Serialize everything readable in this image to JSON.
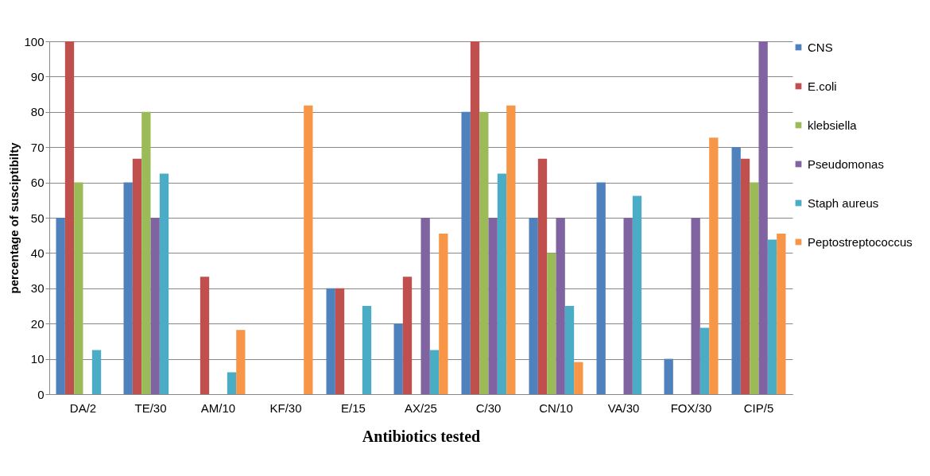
{
  "chart_data": {
    "type": "bar",
    "xlabel": "Antibiotics tested",
    "ylabel": "percentage of susciptibilty",
    "categories": [
      "DA/2",
      "TE/30",
      "AM/10",
      "KF/30",
      "E/15",
      "AX/25",
      "C/30",
      "CN/10",
      "VA/30",
      "FOX/30",
      "CIP/5"
    ],
    "series": [
      {
        "name": "CNS",
        "color": "#4f81bd",
        "values": [
          50,
          60,
          0,
          0,
          30,
          20,
          80,
          50,
          60,
          10,
          70
        ]
      },
      {
        "name": "E.coli",
        "color": "#c0504d",
        "values": [
          100,
          66.7,
          33.3,
          0,
          30,
          33.3,
          100,
          66.7,
          0,
          0,
          66.7
        ]
      },
      {
        "name": "klebsiella",
        "color": "#9bbb59",
        "values": [
          60,
          80,
          0,
          0,
          0,
          0,
          80,
          40,
          0,
          0,
          60
        ]
      },
      {
        "name": "Pseudomonas",
        "color": "#8064a2",
        "values": [
          0,
          50,
          0,
          0,
          0,
          50,
          50,
          50,
          50,
          50,
          100
        ]
      },
      {
        "name": "Staph aureus",
        "color": "#4bacc6",
        "values": [
          12.5,
          62.5,
          6.2,
          0,
          25,
          12.5,
          62.5,
          25,
          56.2,
          18.8,
          43.8
        ]
      },
      {
        "name": "Peptostreptococcus",
        "color": "#f79646",
        "values": [
          0,
          0,
          18.2,
          81.8,
          0,
          45.5,
          81.8,
          9.1,
          0,
          72.7,
          45.5
        ]
      }
    ],
    "ylim": [
      0,
      100
    ],
    "yticks": [
      0,
      10,
      20,
      30,
      40,
      50,
      60,
      70,
      80,
      90,
      100
    ],
    "grid": "y",
    "legend": "right"
  }
}
